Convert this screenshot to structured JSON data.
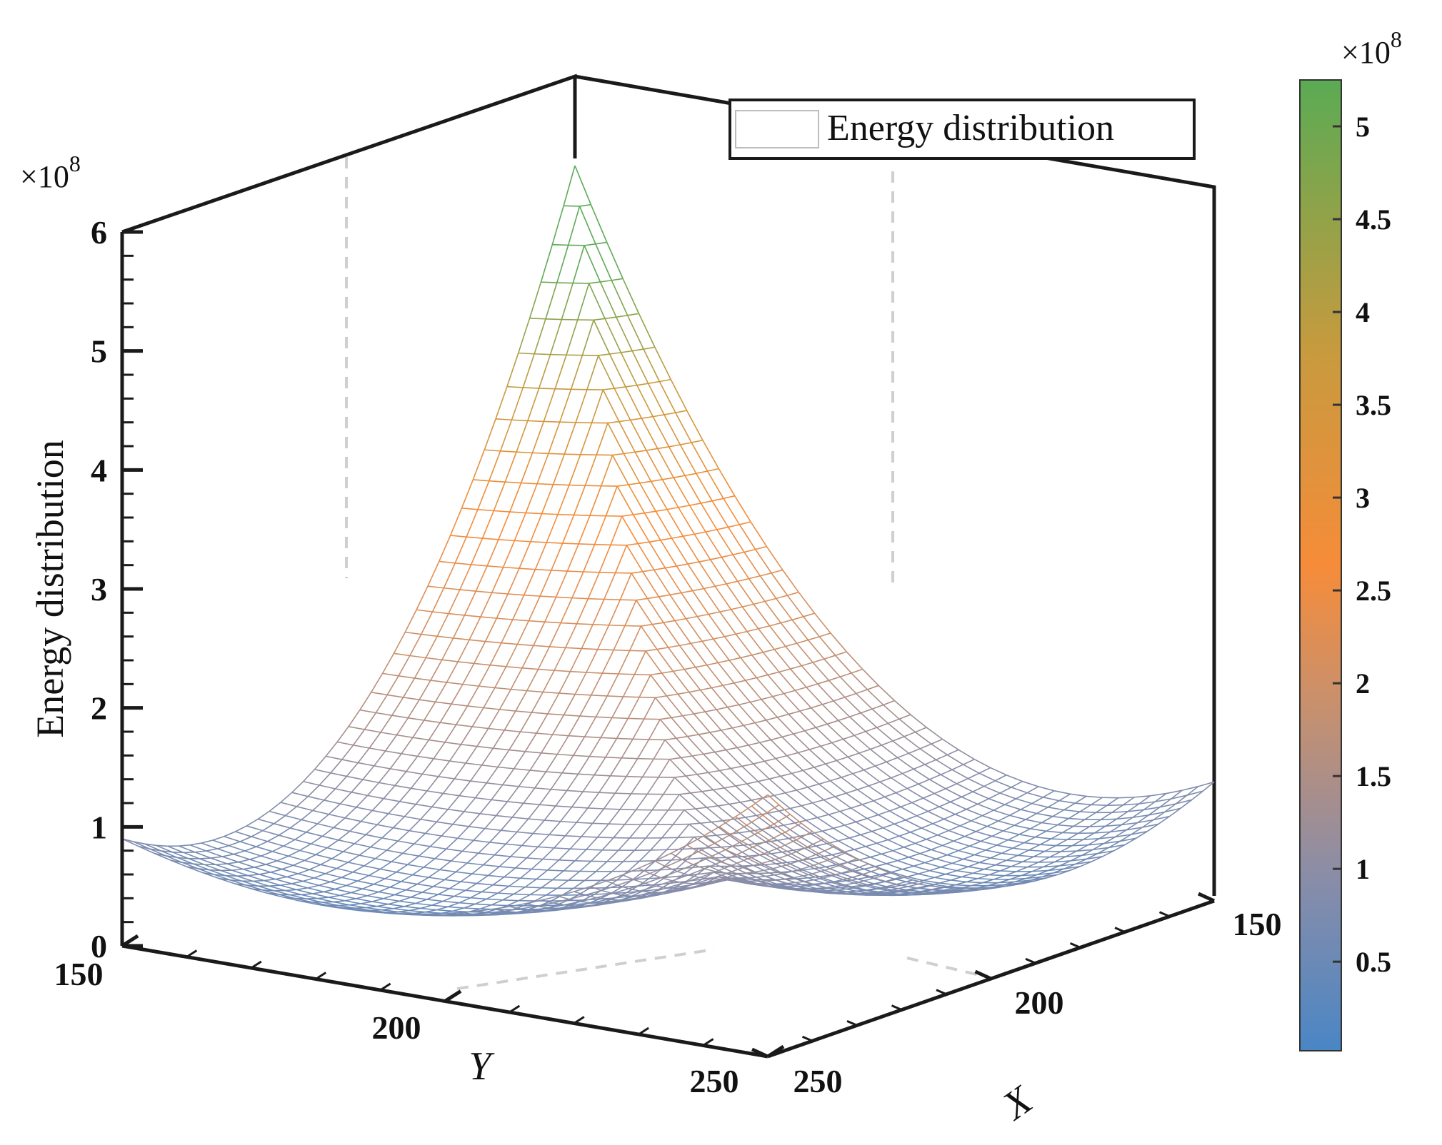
{
  "chart_data": {
    "type": "surface",
    "title": "",
    "xlabel": "X",
    "ylabel": "Y",
    "zlabel": "Energy distribution",
    "x_range": [
      150,
      250
    ],
    "y_range": [
      150,
      250
    ],
    "z_range": [
      0,
      6
    ],
    "z_multiplier_label": "×10",
    "z_multiplier_exponent": "8",
    "x_ticks": [
      "150",
      "200",
      "250"
    ],
    "y_ticks": [
      "150",
      "200",
      "250"
    ],
    "z_ticks": [
      "0",
      "1",
      "2",
      "3",
      "4",
      "5",
      "6"
    ],
    "legend": [
      {
        "name": "Energy distribution",
        "placement": "top-right"
      }
    ],
    "colorbar": {
      "range": [
        0.02,
        5.25
      ],
      "ticks": [
        "0.5",
        "1",
        "1.5",
        "2",
        "2.5",
        "3",
        "3.5",
        "4",
        "4.5",
        "5"
      ],
      "multiplier_label": "×10",
      "multiplier_exponent": "8",
      "colors": [
        "#4a86c5",
        "#8a8da8",
        "#c9906c",
        "#f68c3a",
        "#c89a3e",
        "#5aab54"
      ]
    },
    "surface_samples": [
      {
        "x": 150,
        "y": 150,
        "z": 6.0
      },
      {
        "x": 250,
        "y": 150,
        "z": 1.0
      },
      {
        "x": 150,
        "y": 250,
        "z": 0.9
      },
      {
        "x": 250,
        "y": 250,
        "z": 2.2
      },
      {
        "x": 200,
        "y": 200,
        "z": 0.0
      }
    ]
  }
}
